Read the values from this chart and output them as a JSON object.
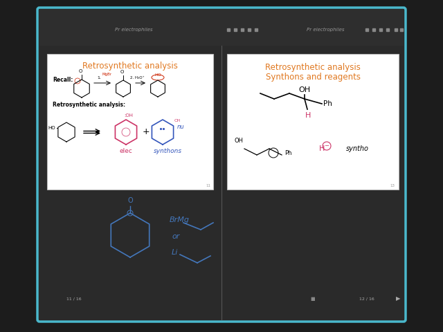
{
  "bg_color": "#1c1c1c",
  "outer_border_color": "#4ab8cc",
  "panel_bg": "white",
  "left_panel": {
    "title": "Retrosynthetic analysis",
    "title_color": "#e07820",
    "recall_label": "Recall:",
    "retro_label": "Retrosynthetic analysis:",
    "elec_label": "elec",
    "synthons_label": "synthons",
    "nu_label": "nu"
  },
  "right_panel": {
    "title_line1": "Retrosynthetic analysis",
    "title_line2": "Synthons and reagents",
    "title_color": "#e07820",
    "syntho_label": "syntho"
  },
  "toolbar_color": "#2e2e2e",
  "inner_bg": "#2a2a2a",
  "page_nums_left": "11 / 16",
  "page_nums_right": "12 / 16"
}
